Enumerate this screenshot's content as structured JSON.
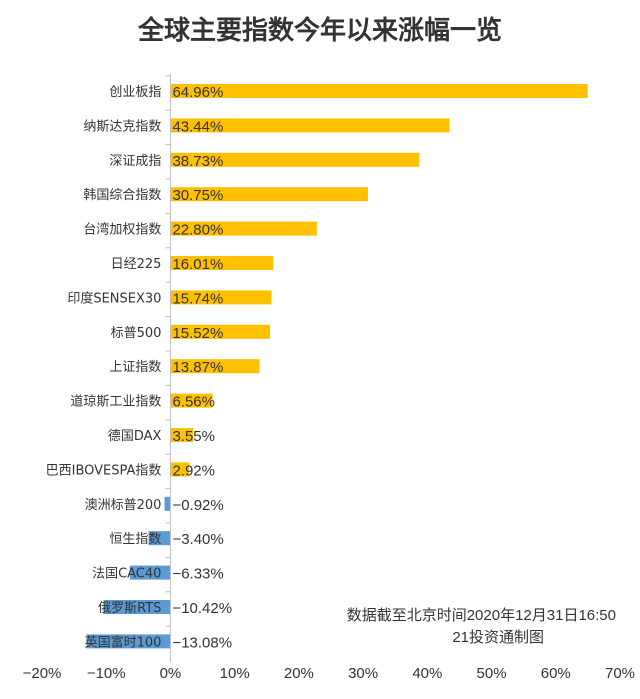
{
  "chart_data": {
    "type": "bar",
    "orientation": "horizontal",
    "title": "全球主要指数今年以来涨幅一览",
    "categories": [
      "创业板指",
      "纳斯达克指数",
      "深证成指",
      "韩国综合指数",
      "台湾加权指数",
      "日经225",
      "印度SENSEX30",
      "标普500",
      "上证指数",
      "道琼斯工业指数",
      "德国DAX",
      "巴西IBOVESPA指数",
      "澳洲标普200",
      "恒生指数",
      "法国CAC40",
      "俄罗斯RTS",
      "英国富时100"
    ],
    "values": [
      64.96,
      43.44,
      38.73,
      30.75,
      22.8,
      16.01,
      15.74,
      15.52,
      13.87,
      6.56,
      3.55,
      2.92,
      -0.92,
      -3.4,
      -6.33,
      -10.42,
      -13.08
    ],
    "value_labels": [
      "64.96%",
      "43.44%",
      "38.73%",
      "30.75%",
      "22.80%",
      "16.01%",
      "15.74%",
      "15.52%",
      "13.87%",
      "6.56%",
      "3.55%",
      "2.92%",
      "−0.92%",
      "−3.40%",
      "−6.33%",
      "−10.42%",
      "−13.08%"
    ],
    "xlim": [
      -20,
      70
    ],
    "xticks": [
      -20,
      -10,
      0,
      10,
      20,
      30,
      40,
      50,
      60,
      70
    ],
    "xtick_labels": [
      "−20%",
      "−10%",
      "0%",
      "10%",
      "20%",
      "30%",
      "40%",
      "50%",
      "60%",
      "70%"
    ],
    "colors": {
      "positive": "#FFC000",
      "negative": "#5B9BD5"
    },
    "grid": false,
    "legend": "none"
  },
  "notes": {
    "line1": "数据截至北京时间2020年12月31日16:50",
    "line2": "21投资通制图"
  }
}
